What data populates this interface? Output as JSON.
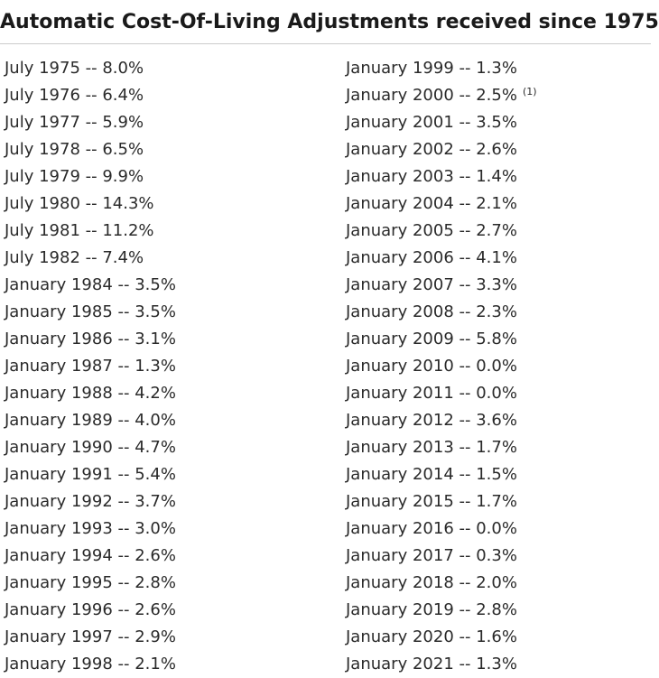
{
  "header": {
    "title": "Automatic Cost-Of-Living Adjustments received since 1975"
  },
  "columns": [
    [
      {
        "text": "July 1975 -- 8.0%"
      },
      {
        "text": "July 1976 -- 6.4%"
      },
      {
        "text": "July 1977 -- 5.9%"
      },
      {
        "text": "July 1978 -- 6.5%"
      },
      {
        "text": "July 1979 -- 9.9%"
      },
      {
        "text": "July 1980 -- 14.3%"
      },
      {
        "text": "July 1981 -- 11.2%"
      },
      {
        "text": "July 1982 -- 7.4%"
      },
      {
        "text": "January 1984 -- 3.5%"
      },
      {
        "text": "January 1985 -- 3.5%"
      },
      {
        "text": "January 1986 -- 3.1%"
      },
      {
        "text": "January 1987 -- 1.3%"
      },
      {
        "text": "January 1988 -- 4.2%"
      },
      {
        "text": "January 1989 -- 4.0%"
      },
      {
        "text": "January 1990 -- 4.7%"
      },
      {
        "text": "January 1991 -- 5.4%"
      },
      {
        "text": "January 1992 -- 3.7%"
      },
      {
        "text": "January 1993 -- 3.0%"
      },
      {
        "text": "January 1994 -- 2.6%"
      },
      {
        "text": "January 1995 -- 2.8%"
      },
      {
        "text": "January 1996 -- 2.6%"
      },
      {
        "text": "January 1997 -- 2.9%"
      },
      {
        "text": "January 1998 -- 2.1%"
      }
    ],
    [
      {
        "text": "January 1999 -- 1.3%"
      },
      {
        "text": "January 2000 -- 2.5%",
        "note": "(1)"
      },
      {
        "text": "January 2001 -- 3.5%"
      },
      {
        "text": "January 2002 -- 2.6%"
      },
      {
        "text": "January 2003 -- 1.4%"
      },
      {
        "text": "January 2004 -- 2.1%"
      },
      {
        "text": "January 2005 -- 2.7%"
      },
      {
        "text": "January 2006 -- 4.1%"
      },
      {
        "text": "January 2007 -- 3.3%"
      },
      {
        "text": "January 2008 -- 2.3%"
      },
      {
        "text": "January 2009 -- 5.8%"
      },
      {
        "text": "January 2010 -- 0.0%"
      },
      {
        "text": "January 2011 -- 0.0%"
      },
      {
        "text": "January 2012 -- 3.6%"
      },
      {
        "text": "January 2013 -- 1.7%"
      },
      {
        "text": "January 2014 -- 1.5%"
      },
      {
        "text": "January 2015 -- 1.7%"
      },
      {
        "text": "January 2016 -- 0.0%"
      },
      {
        "text": "January 2017 -- 0.3%"
      },
      {
        "text": "January 2018 -- 2.0%"
      },
      {
        "text": "January 2019 -- 2.8%"
      },
      {
        "text": "January 2020 -- 1.6%"
      },
      {
        "text": "January 2021 -- 1.3%"
      }
    ]
  ]
}
